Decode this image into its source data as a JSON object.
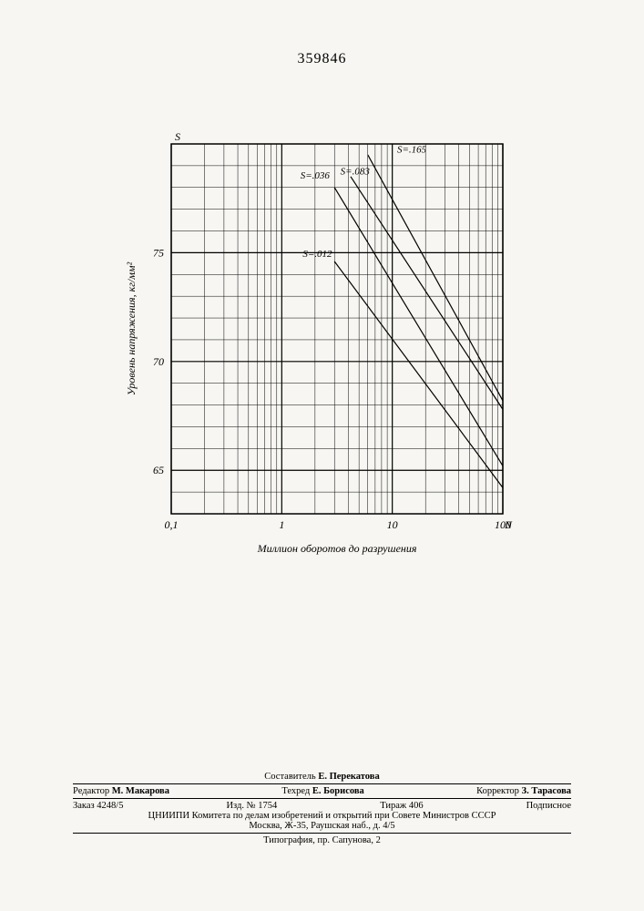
{
  "patent_number": "359846",
  "chart": {
    "type": "line",
    "background_color": "#f7f6f2",
    "grid_color": "#000000",
    "axis_color": "#000000",
    "line_color": "#000000",
    "line_width": 1.2,
    "label_fontsize": 12,
    "tick_fontsize": 12,
    "series_label_fontsize": 11,
    "y_axis_letter": "S",
    "x_axis_letter": "N",
    "ylabel": "Уровень напряжения, кг/мм²",
    "xlabel": "Миллион оборотов до разрушения",
    "x_scale": "log",
    "xlim": [
      0.1,
      100
    ],
    "x_ticks": [
      0.1,
      1,
      10,
      100
    ],
    "x_tick_labels": [
      "0,1",
      "1",
      "10",
      "100"
    ],
    "ylim": [
      63,
      80
    ],
    "y_major_ticks": [
      65,
      70,
      75
    ],
    "y_minor_step": 1,
    "series": [
      {
        "label": "S=.012",
        "points": [
          [
            3,
            74.6
          ],
          [
            100,
            64.2
          ]
        ],
        "label_xy": [
          2.1,
          74.8
        ]
      },
      {
        "label": "S=.036",
        "points": [
          [
            3,
            78.0
          ],
          [
            100,
            65.2
          ]
        ],
        "label_xy": [
          2.0,
          78.4
        ]
      },
      {
        "label": "S=.083",
        "points": [
          [
            4.2,
            78.5
          ],
          [
            100,
            67.8
          ]
        ],
        "label_xy": [
          4.6,
          78.6
        ]
      },
      {
        "label": "S=.165",
        "points": [
          [
            6.0,
            79.5
          ],
          [
            100,
            68.2
          ]
        ],
        "label_xy": [
          15,
          79.6
        ]
      }
    ]
  },
  "footer": {
    "compiler_prefix": "Составитель ",
    "compiler": "Е. Перекатова",
    "editor_prefix": "Редактор ",
    "editor": "М. Макарова",
    "tech_editor_prefix": "Техред ",
    "tech_editor": "Е. Борисова",
    "corrector_prefix": "Корректор ",
    "corrector": "З. Тарасова",
    "order_prefix": "Заказ ",
    "order_no": "4248/5",
    "issue_prefix": "Изд. № ",
    "issue_no": "1754",
    "print_run_prefix": "Тираж ",
    "print_run": "406",
    "subscription": "Подписное",
    "org_line1": "ЦНИИПИ Комитета по делам изобретений и открытий при Совете Министров СССР",
    "org_line2": "Москва, Ж-35, Раушская наб., д. 4/5",
    "typography": "Типография, пр. Сапунова, 2"
  }
}
